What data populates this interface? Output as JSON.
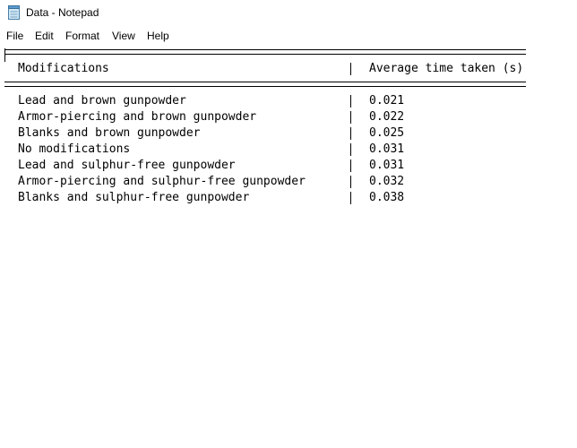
{
  "window": {
    "title": "Data - Notepad",
    "app_icon": "notepad-icon"
  },
  "menu": [
    {
      "label": "File"
    },
    {
      "label": "Edit"
    },
    {
      "label": "Format"
    },
    {
      "label": "View"
    },
    {
      "label": "Help"
    }
  ],
  "table": {
    "headers": [
      "Modifications",
      "Average time taken (s)"
    ],
    "rows": [
      {
        "modification": "Lead and brown gunpowder",
        "time": "0.021"
      },
      {
        "modification": "Armor-piercing and brown gunpowder",
        "time": "0.022"
      },
      {
        "modification": "Blanks and brown gunpowder",
        "time": "0.025"
      },
      {
        "modification": "No modifications",
        "time": "0.031"
      },
      {
        "modification": "Lead and sulphur-free gunpowder",
        "time": "0.031"
      },
      {
        "modification": "Armor-piercing and sulphur-free gunpowder",
        "time": "0.032"
      },
      {
        "modification": "Blanks and sulphur-free gunpowder",
        "time": "0.038"
      }
    ]
  }
}
